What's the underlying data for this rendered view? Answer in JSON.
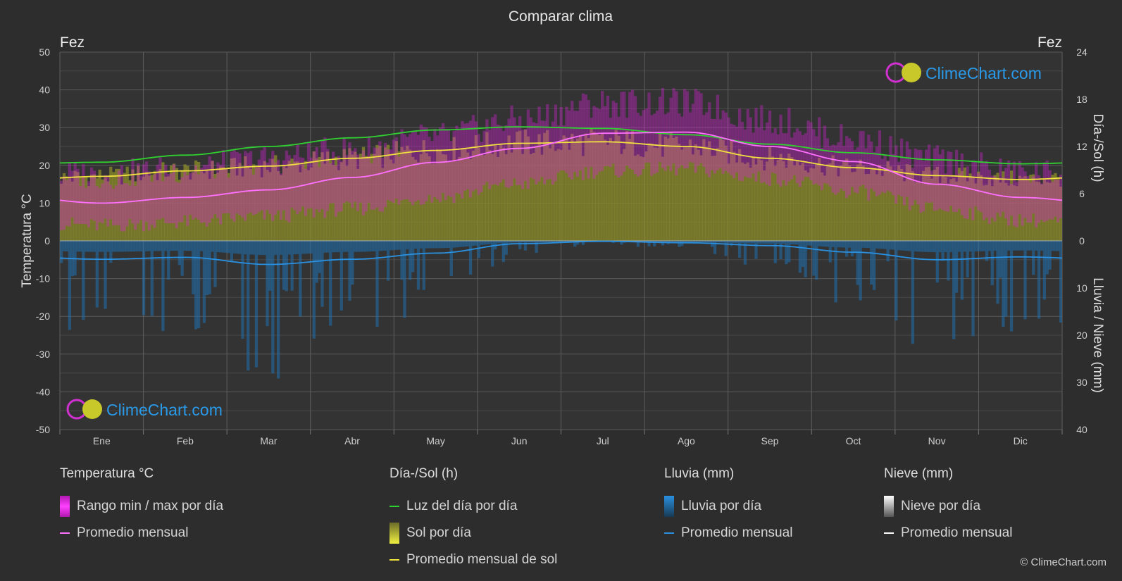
{
  "title": "Comparar clima",
  "city_left": "Fez",
  "city_right": "Fez",
  "copyright": "© ClimeChart.com",
  "logo_text": "ClimeChart.com",
  "chart_data": {
    "type": "area",
    "title": "Comparar clima",
    "months": [
      "Ene",
      "Feb",
      "Mar",
      "Abr",
      "May",
      "Jun",
      "Jul",
      "Ago",
      "Sep",
      "Oct",
      "Nov",
      "Dic"
    ],
    "axes": {
      "left": {
        "label": "Temperatura °C",
        "min": -50,
        "max": 50,
        "ticks": [
          50,
          40,
          30,
          20,
          10,
          0,
          -10,
          -20,
          -30,
          -40,
          -50
        ]
      },
      "right_top": {
        "label": "Día-/Sol (h)",
        "min": 0,
        "max": 24,
        "ticks": [
          24,
          18,
          12,
          6,
          0
        ]
      },
      "right_bottom": {
        "label": "Lluvia / Nieve (mm)",
        "min": 0,
        "max": 40,
        "ticks": [
          0,
          10,
          20,
          30,
          40
        ]
      }
    },
    "series": {
      "temp_avg_monthly": [
        10.0,
        11.5,
        13.5,
        16.8,
        20.8,
        24.5,
        28.5,
        28.8,
        25.0,
        21.0,
        15.0,
        11.5
      ],
      "temp_max_monthly": [
        17.5,
        19.0,
        21.5,
        24.0,
        27.5,
        32.0,
        36.5,
        36.5,
        32.0,
        27.0,
        21.5,
        18.0
      ],
      "temp_min_monthly": [
        4.0,
        5.0,
        6.5,
        8.5,
        11.5,
        15.0,
        18.5,
        19.0,
        16.5,
        13.0,
        8.5,
        5.5
      ],
      "daylight_hours": [
        10.0,
        10.9,
        12.0,
        13.1,
        14.1,
        14.5,
        14.3,
        13.5,
        12.3,
        11.2,
        10.3,
        9.8
      ],
      "sunshine_monthly_hours": [
        8.2,
        8.9,
        9.5,
        10.5,
        11.5,
        12.4,
        12.6,
        12.0,
        10.5,
        9.3,
        8.3,
        7.8
      ],
      "rain_monthly_mm": [
        3.9,
        3.5,
        5.0,
        3.9,
        2.6,
        0.6,
        0.1,
        0.4,
        1.0,
        2.4,
        4.0,
        3.4
      ],
      "snow_monthly_mm": [
        0,
        0,
        0,
        0,
        0,
        0,
        0,
        0,
        0,
        0,
        0,
        0
      ]
    }
  },
  "legend": {
    "temp": {
      "header": "Temperatura °C",
      "range": "Rango min / max por día",
      "avg": "Promedio mensual"
    },
    "sun": {
      "header": "Día-/Sol (h)",
      "daylight": "Luz del día por día",
      "sun": "Sol por día",
      "avg": "Promedio mensual de sol"
    },
    "rain": {
      "header": "Lluvia (mm)",
      "day": "Lluvia por día",
      "avg": "Promedio mensual"
    },
    "snow": {
      "header": "Nieve (mm)",
      "day": "Nieve por día",
      "avg": "Promedio mensual"
    }
  },
  "colors": {
    "temp_range": "#e020e0",
    "temp_avg": "#ff70ff",
    "daylight": "#30d030",
    "sunshine_fill": "#b8b830",
    "sunshine_avg": "#f0e040",
    "rain_fill": "#1f6fae",
    "rain_avg": "#2a90e0",
    "snow": "#ffffff",
    "logo_blue": "#2a9ae8"
  }
}
